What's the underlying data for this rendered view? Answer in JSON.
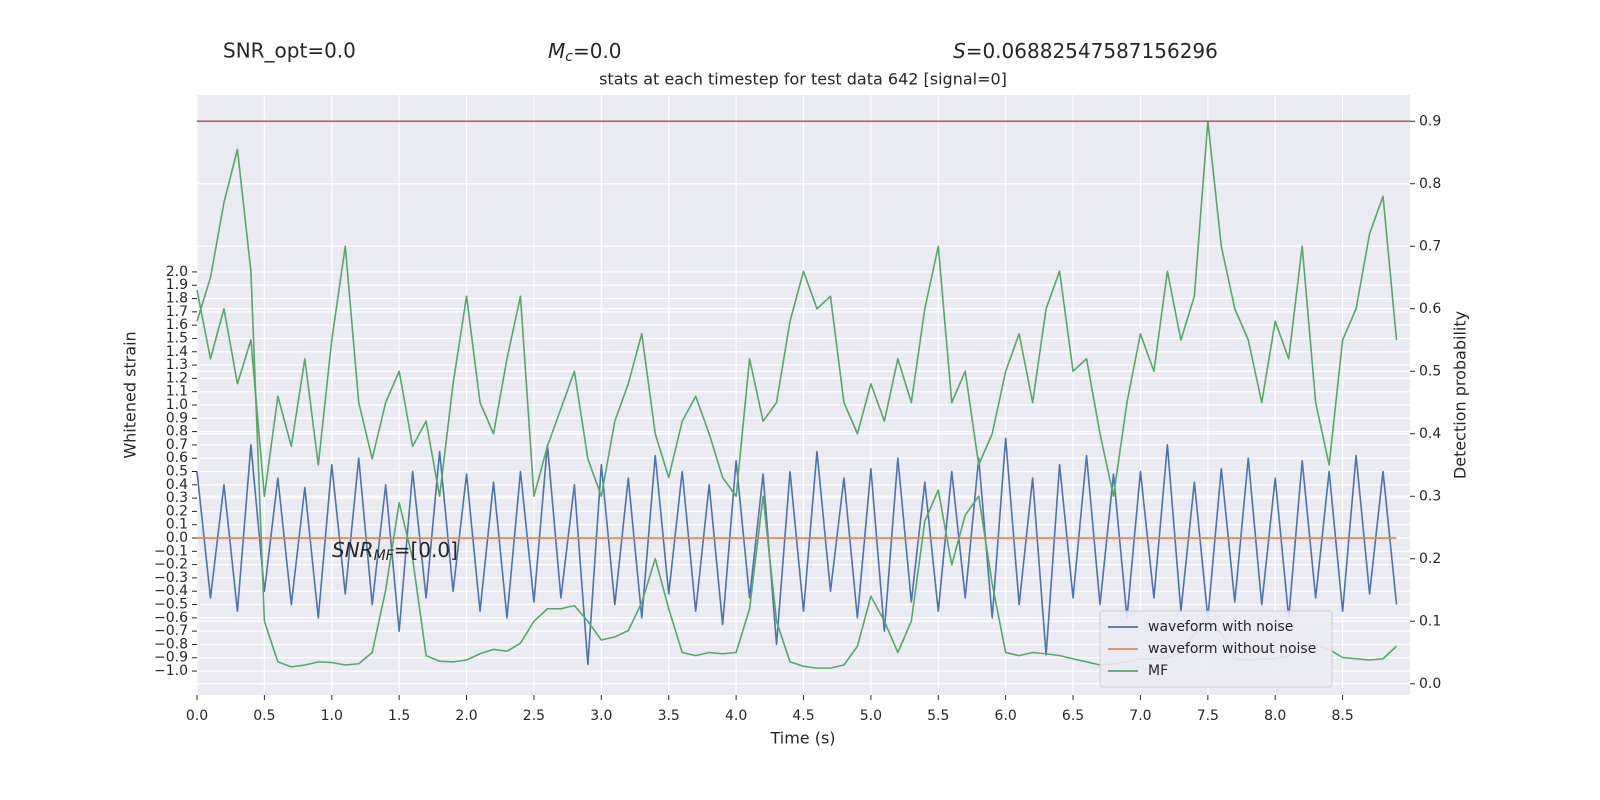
{
  "chart_data": {
    "type": "line",
    "title": "stats at each timestep for test data 642 [signal=0]",
    "header": [
      {
        "text": "SNR_opt=0.0"
      },
      {
        "main": "M",
        "sub": "c",
        "rest": "=0.0"
      },
      {
        "main": "S",
        "rest": "=0.06882547587156296"
      }
    ],
    "annotation": {
      "main": "SNR",
      "sub": "MF",
      "rest": "=[0.0]"
    },
    "xlabel": "Time (s)",
    "ylabel": "Whitened strain",
    "y2label": "Detection probability",
    "grid": true,
    "legend": "lower right",
    "xlim": [
      0,
      9.0
    ],
    "ylim": [
      -1.18,
      3.33
    ],
    "y2lim": [
      -0.018,
      0.942
    ],
    "xticks": [
      {
        "value": 0,
        "label": "0.0"
      },
      0.5,
      {
        "value": 1,
        "label": "1.0"
      },
      1.5,
      {
        "value": 2,
        "label": "2.0"
      },
      2.5,
      {
        "value": 3,
        "label": "3.0"
      },
      3.5,
      {
        "value": 4,
        "label": "4.0"
      },
      4.5,
      {
        "value": 5,
        "label": "5.0"
      },
      5.5,
      {
        "value": 6,
        "label": "6.0"
      },
      6.5,
      {
        "value": 7,
        "label": "7.0"
      },
      7.5,
      {
        "value": 8,
        "label": "8.0"
      },
      8.5
    ],
    "yticks": [
      {
        "value": -1,
        "label": "−1.0"
      },
      {
        "value": -0.9,
        "label": "−0.9"
      },
      {
        "value": -0.8,
        "label": "−0.8"
      },
      {
        "value": -0.7,
        "label": "−0.7"
      },
      {
        "value": -0.6,
        "label": "−0.6"
      },
      {
        "value": -0.5,
        "label": "−0.5"
      },
      {
        "value": -0.4,
        "label": "−0.4"
      },
      {
        "value": -0.3,
        "label": "−0.3"
      },
      {
        "value": -0.2,
        "label": "−0.2"
      },
      {
        "value": -0.1,
        "label": "−0.1"
      },
      {
        "value": 0,
        "label": "0.0"
      },
      0.1,
      0.2,
      0.3,
      0.4,
      0.5,
      0.6,
      0.7,
      0.8,
      0.9,
      {
        "value": 1,
        "label": "1.0"
      },
      1.1,
      1.2,
      1.3,
      1.4,
      1.5,
      1.6,
      1.7,
      1.8,
      1.9,
      {
        "value": 2,
        "label": "2.0"
      }
    ],
    "y2ticks": [
      {
        "value": 0,
        "label": "0.0"
      },
      0.1,
      0.2,
      0.3,
      0.4,
      0.5,
      0.6,
      0.7,
      0.8,
      0.9
    ],
    "hline": {
      "value": 0.9,
      "axis": "y2",
      "color": "#c44e52"
    },
    "x": [
      0.0,
      0.1,
      0.2,
      0.3,
      0.4,
      0.5,
      0.6,
      0.7,
      0.8,
      0.9,
      1.0,
      1.1,
      1.2,
      1.3,
      1.4,
      1.5,
      1.6,
      1.7,
      1.8,
      1.9,
      2.0,
      2.1,
      2.2,
      2.3,
      2.4,
      2.5,
      2.6,
      2.7,
      2.8,
      2.9,
      3.0,
      3.1,
      3.2,
      3.3,
      3.4,
      3.5,
      3.6,
      3.7,
      3.8,
      3.9,
      4.0,
      4.1,
      4.2,
      4.3,
      4.4,
      4.5,
      4.6,
      4.7,
      4.8,
      4.9,
      5.0,
      5.1,
      5.2,
      5.3,
      5.4,
      5.5,
      5.6,
      5.7,
      5.8,
      5.9,
      6.0,
      6.1,
      6.2,
      6.3,
      6.4,
      6.5,
      6.6,
      6.7,
      6.8,
      6.9,
      7.0,
      7.1,
      7.2,
      7.3,
      7.4,
      7.5,
      7.6,
      7.7,
      7.8,
      7.9,
      8.0,
      8.1,
      8.2,
      8.3,
      8.4,
      8.5,
      8.6,
      8.7,
      8.8,
      8.9
    ],
    "series": [
      {
        "name": "waveform with noise",
        "color": "#4c72b0",
        "values": [
          0.5,
          -0.45,
          0.4,
          -0.55,
          0.7,
          -0.4,
          0.45,
          -0.5,
          0.38,
          -0.6,
          0.55,
          -0.42,
          0.6,
          -0.5,
          0.4,
          -0.7,
          0.5,
          -0.45,
          0.65,
          -0.4,
          0.48,
          -0.55,
          0.42,
          -0.6,
          0.5,
          -0.48,
          0.7,
          -0.45,
          0.4,
          -0.95,
          0.55,
          -0.5,
          0.45,
          -0.6,
          0.62,
          -0.42,
          0.5,
          -0.55,
          0.4,
          -0.65,
          0.58,
          -0.45,
          0.48,
          -0.8,
          0.5,
          -0.55,
          0.65,
          -0.4,
          0.45,
          -0.6,
          0.52,
          -0.7,
          0.6,
          -0.48,
          0.42,
          -0.55,
          0.5,
          -0.45,
          0.6,
          -0.6,
          0.75,
          -0.5,
          0.45,
          -0.88,
          0.55,
          -0.45,
          0.62,
          -0.5,
          0.48,
          -0.6,
          0.5,
          -0.45,
          0.7,
          -0.55,
          0.42,
          -0.6,
          0.52,
          -0.48,
          0.6,
          -0.5,
          0.45,
          -0.6,
          0.58,
          -0.45,
          0.5,
          -0.55,
          0.62,
          -0.42,
          0.5,
          -0.5
        ]
      },
      {
        "name": "waveform without noise",
        "color": "#dd8452",
        "values": [
          0,
          0,
          0,
          0,
          0,
          0,
          0,
          0,
          0,
          0,
          0,
          0,
          0,
          0,
          0,
          0,
          0,
          0,
          0,
          0,
          0,
          0,
          0,
          0,
          0,
          0,
          0,
          0,
          0,
          0,
          0,
          0,
          0,
          0,
          0,
          0,
          0,
          0,
          0,
          0,
          0,
          0,
          0,
          0,
          0,
          0,
          0,
          0,
          0,
          0,
          0,
          0,
          0,
          0,
          0,
          0,
          0,
          0,
          0,
          0,
          0,
          0,
          0,
          0,
          0,
          0,
          0,
          0,
          0,
          0,
          0,
          0,
          0,
          0,
          0,
          0,
          0,
          0,
          0,
          0,
          0,
          0,
          0,
          0,
          0,
          0,
          0,
          0,
          0,
          0
        ]
      },
      {
        "name": "MF",
        "color": "#55a868",
        "axis": "y2",
        "values": [
          0.58,
          0.65,
          0.77,
          0.855,
          0.66,
          0.1,
          0.035,
          0.027,
          0.03,
          0.035,
          0.034,
          0.03,
          0.032,
          0.05,
          0.15,
          0.29,
          0.2,
          0.045,
          0.036,
          0.035,
          0.038,
          0.048,
          0.055,
          0.052,
          0.065,
          0.1,
          0.12,
          0.12,
          0.125,
          0.1,
          0.07,
          0.075,
          0.085,
          0.13,
          0.2,
          0.12,
          0.05,
          0.045,
          0.05,
          0.048,
          0.05,
          0.12,
          0.3,
          0.1,
          0.035,
          0.028,
          0.025,
          0.025,
          0.03,
          0.06,
          0.14,
          0.1,
          0.05,
          0.1,
          0.26,
          0.31,
          0.19,
          0.27,
          0.3,
          0.16,
          0.05,
          0.045,
          0.05,
          0.048,
          0.045,
          0.04,
          0.035,
          0.03,
          0.032,
          0.035,
          0.04,
          0.04,
          0.042,
          0.05,
          0.08,
          0.1,
          0.08,
          0.04,
          0.038,
          0.04,
          0.04,
          0.045,
          0.055,
          0.062,
          0.055,
          0.042,
          0.04,
          0.038,
          0.04,
          0.06
        ]
      },
      {
        "color": "#55a868",
        "axis": "y2",
        "values": [
          0.63,
          0.52,
          0.6,
          0.48,
          0.55,
          0.3,
          0.46,
          0.38,
          0.52,
          0.35,
          0.55,
          0.7,
          0.45,
          0.36,
          0.45,
          0.5,
          0.38,
          0.42,
          0.3,
          0.48,
          0.62,
          0.45,
          0.4,
          0.52,
          0.62,
          0.3,
          0.38,
          0.44,
          0.5,
          0.36,
          0.3,
          0.42,
          0.48,
          0.56,
          0.4,
          0.33,
          0.42,
          0.46,
          0.4,
          0.33,
          0.3,
          0.52,
          0.42,
          0.45,
          0.58,
          0.66,
          0.6,
          0.62,
          0.45,
          0.4,
          0.48,
          0.42,
          0.52,
          0.45,
          0.6,
          0.7,
          0.45,
          0.5,
          0.35,
          0.4,
          0.5,
          0.56,
          0.45,
          0.6,
          0.66,
          0.5,
          0.52,
          0.4,
          0.3,
          0.45,
          0.56,
          0.5,
          0.66,
          0.55,
          0.62,
          0.9,
          0.7,
          0.6,
          0.55,
          0.45,
          0.58,
          0.52,
          0.7,
          0.45,
          0.35,
          0.55,
          0.6,
          0.72,
          0.78,
          0.55
        ]
      }
    ]
  }
}
